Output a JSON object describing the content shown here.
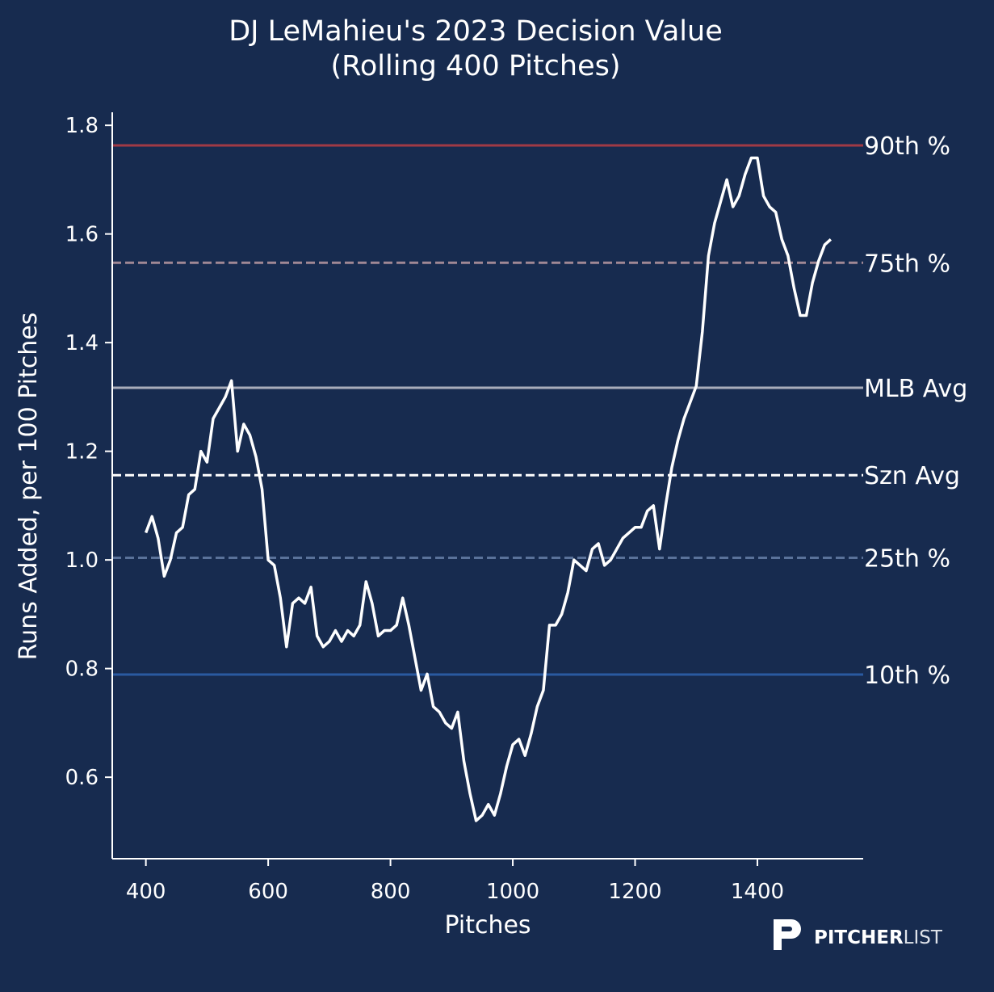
{
  "chart_data": {
    "type": "line",
    "title": "DJ LeMahieu's 2023 Decision Value",
    "subtitle": "(Rolling 400 Pitches)",
    "x_label": "Pitches",
    "y_label": "Runs Added, per 100 Pitches",
    "xlim": [
      345,
      1573
    ],
    "ylim": [
      0.45,
      1.824
    ],
    "xticks": [
      400,
      600,
      800,
      1000,
      1200,
      1400
    ],
    "yticks": [
      0.6,
      0.8,
      {
        "value": 1,
        "label": "1.0"
      },
      1.2,
      1.4,
      1.6,
      1.8
    ],
    "x": [
      400,
      410,
      420,
      430,
      440,
      450,
      460,
      470,
      480,
      490,
      500,
      510,
      520,
      530,
      540,
      550,
      560,
      570,
      580,
      590,
      600,
      610,
      620,
      630,
      640,
      650,
      660,
      670,
      680,
      690,
      700,
      710,
      720,
      730,
      740,
      750,
      760,
      770,
      780,
      790,
      800,
      810,
      820,
      830,
      840,
      850,
      860,
      870,
      880,
      890,
      900,
      910,
      920,
      930,
      940,
      950,
      960,
      970,
      980,
      990,
      1000,
      1010,
      1020,
      1030,
      1040,
      1050,
      1060,
      1070,
      1080,
      1090,
      1100,
      1110,
      1120,
      1130,
      1140,
      1150,
      1160,
      1170,
      1180,
      1190,
      1200,
      1210,
      1220,
      1230,
      1240,
      1250,
      1260,
      1270,
      1280,
      1290,
      1300,
      1310,
      1320,
      1330,
      1340,
      1350,
      1360,
      1370,
      1380,
      1390,
      1400,
      1410,
      1420,
      1430,
      1440,
      1450,
      1460,
      1470,
      1480,
      1490,
      1500,
      1510,
      1520
    ],
    "series": [
      {
        "color": "#ffffff",
        "values": [
          1.05,
          1.08,
          1.04,
          0.97,
          1.0,
          1.05,
          1.06,
          1.12,
          1.13,
          1.2,
          1.18,
          1.26,
          1.28,
          1.3,
          1.33,
          1.2,
          1.25,
          1.23,
          1.19,
          1.13,
          1.0,
          0.99,
          0.93,
          0.84,
          0.92,
          0.93,
          0.92,
          0.95,
          0.86,
          0.84,
          0.85,
          0.87,
          0.85,
          0.87,
          0.86,
          0.88,
          0.96,
          0.92,
          0.86,
          0.87,
          0.87,
          0.88,
          0.93,
          0.88,
          0.82,
          0.76,
          0.79,
          0.73,
          0.72,
          0.7,
          0.69,
          0.72,
          0.63,
          0.57,
          0.52,
          0.53,
          0.55,
          0.53,
          0.57,
          0.62,
          0.66,
          0.67,
          0.64,
          0.68,
          0.73,
          0.76,
          0.88,
          0.88,
          0.9,
          0.94,
          1.0,
          0.99,
          0.98,
          1.02,
          1.03,
          0.99,
          1.0,
          1.02,
          1.04,
          1.05,
          1.06,
          1.06,
          1.09,
          1.1,
          1.02,
          1.1,
          1.17,
          1.22,
          1.26,
          1.29,
          1.32,
          1.42,
          1.56,
          1.62,
          1.66,
          1.7,
          1.65,
          1.67,
          1.71,
          1.74,
          1.74,
          1.67,
          1.65,
          1.64,
          1.59,
          1.56,
          1.5,
          1.45,
          1.45,
          1.51,
          1.55,
          1.58,
          1.59
        ]
      }
    ],
    "reference_lines": [
      {
        "label": "90th %",
        "value": 1.763,
        "color": "#a03a45",
        "label_color": "#b5464f",
        "dashed": false
      },
      {
        "label": "75th %",
        "value": 1.547,
        "color": "#a08895",
        "label_color": "#dba3a5",
        "dashed": true
      },
      {
        "label": "MLB Avg",
        "value": 1.317,
        "color": "#a9adbb",
        "label_color": "#c8ccd8",
        "dashed": false
      },
      {
        "label": "Szn Avg",
        "value": 1.156,
        "color": "#ffffff",
        "label_color": "#ffffff",
        "dashed": true
      },
      {
        "label": "25th %",
        "value": 1.004,
        "color": "#5a729a",
        "label_color": "#a3b4d0",
        "dashed": true
      },
      {
        "label": "10th %",
        "value": 0.789,
        "color": "#2a5aa0",
        "label_color": "#5b86c2",
        "dashed": false
      }
    ],
    "logo": {
      "bold": "PITCHER",
      "light": "LIST"
    }
  }
}
